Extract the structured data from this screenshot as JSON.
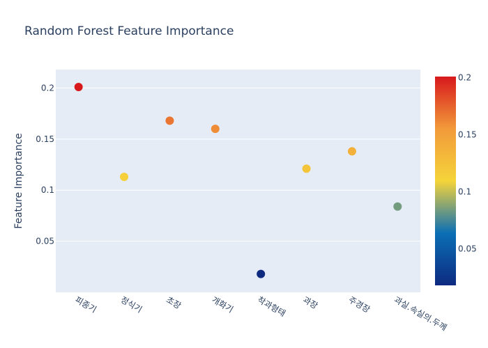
{
  "chart_data": {
    "type": "scatter",
    "title": "Random Forest Feature Importance",
    "xlabel": "",
    "ylabel": "Feature Importance",
    "categories": [
      "피종기",
      "정식기",
      "초장",
      "개화기",
      "착과형태",
      "과장",
      "주경장",
      "과실.속실의.두께"
    ],
    "values": [
      0.201,
      0.113,
      0.168,
      0.16,
      0.018,
      0.121,
      0.138,
      0.084
    ],
    "ylim": [
      0.0,
      0.218
    ],
    "yticks": [
      0.05,
      0.1,
      0.15,
      0.2
    ],
    "ytick_labels": [
      "0.05",
      "0.1",
      "0.15",
      "0.2"
    ],
    "colorbar": {
      "range": [
        0.018,
        0.201
      ],
      "ticks": [
        0.05,
        0.1,
        0.15,
        0.2
      ],
      "tick_labels": [
        "0.05",
        "0.1",
        "0.15",
        "0.2"
      ],
      "colorscale": [
        "#0d2a80",
        "#0b6fb5",
        "#f5d43a",
        "#f29a3a",
        "#d7191c"
      ]
    },
    "grid": true,
    "legend": "none"
  },
  "colors": {
    "plot_bg": "#e5ecf6",
    "grid": "#ffffff",
    "text": "#2a3f5f"
  }
}
